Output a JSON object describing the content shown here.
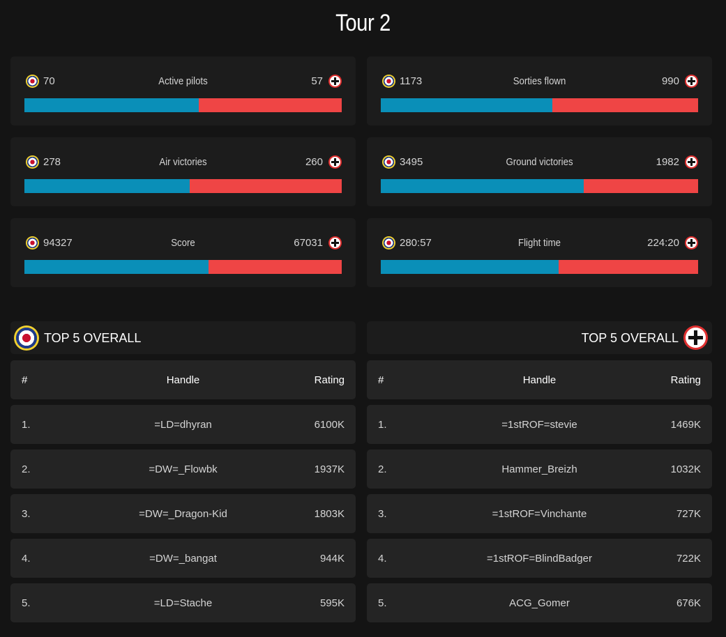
{
  "page": {
    "title": "Tour 2"
  },
  "colors": {
    "allies": "#0a8fb8",
    "axis": "#ef4545",
    "background": "#141414",
    "card": "#1c1c1c"
  },
  "stats": [
    {
      "label": "Active pilots",
      "allies": "70",
      "axis": "57",
      "allies_share": 0.55
    },
    {
      "label": "Sorties flown",
      "allies": "1173",
      "axis": "990",
      "allies_share": 0.54
    },
    {
      "label": "Air victories",
      "allies": "278",
      "axis": "260",
      "allies_share": 0.52
    },
    {
      "label": "Ground victories",
      "allies": "3495",
      "axis": "1982",
      "allies_share": 0.64
    },
    {
      "label": "Score",
      "allies": "94327",
      "axis": "67031",
      "allies_share": 0.58
    },
    {
      "label": "Flight time",
      "allies": "280:57",
      "axis": "224:20",
      "allies_share": 0.56
    }
  ],
  "allies_top": {
    "title": "TOP 5 OVERALL",
    "icon": "raf-roundel-icon",
    "columns": [
      "#",
      "Handle",
      "Rating"
    ],
    "rows": [
      {
        "rank": "1.",
        "handle": "=LD=dhyran",
        "rating": "6100K"
      },
      {
        "rank": "2.",
        "handle": "=DW=_Flowbk",
        "rating": "1937K"
      },
      {
        "rank": "3.",
        "handle": "=DW=_Dragon-Kid",
        "rating": "1803K"
      },
      {
        "rank": "4.",
        "handle": "=DW=_bangat",
        "rating": "944K"
      },
      {
        "rank": "5.",
        "handle": "=LD=Stache",
        "rating": "595K"
      }
    ]
  },
  "axis_top": {
    "title": "TOP 5 OVERALL",
    "icon": "balkenkreuz-icon",
    "columns": [
      "#",
      "Handle",
      "Rating"
    ],
    "rows": [
      {
        "rank": "1.",
        "handle": "=1stROF=stevie",
        "rating": "1469K"
      },
      {
        "rank": "2.",
        "handle": "Hammer_Breizh",
        "rating": "1032K"
      },
      {
        "rank": "3.",
        "handle": "=1stROF=Vinchante",
        "rating": "727K"
      },
      {
        "rank": "4.",
        "handle": "=1stROF=BlindBadger",
        "rating": "722K"
      },
      {
        "rank": "5.",
        "handle": "ACG_Gomer",
        "rating": "676K"
      }
    ]
  }
}
